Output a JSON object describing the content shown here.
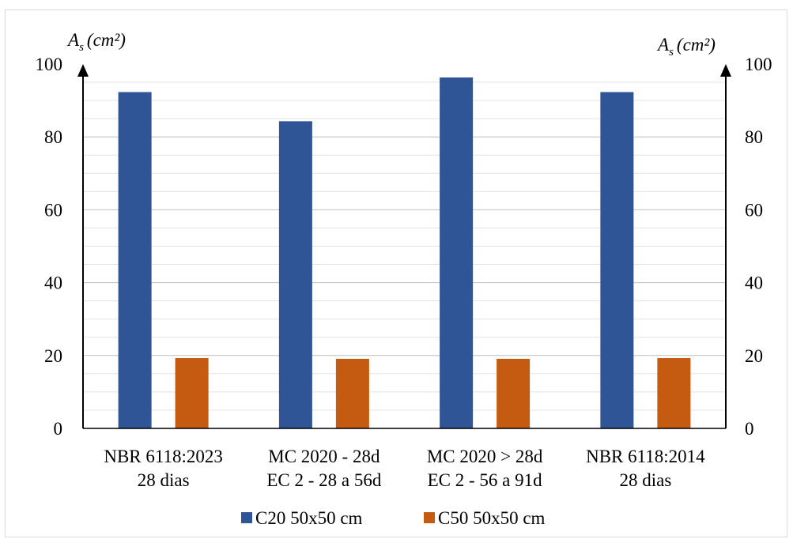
{
  "chart_data": {
    "type": "bar",
    "title": "",
    "categories": [
      [
        "NBR 6118:2023",
        "28 dias"
      ],
      [
        "MC 2020 - 28d",
        "EC 2 - 28 a 56d"
      ],
      [
        "MC 2020 > 28d",
        "EC 2 - 56 a 91d"
      ],
      [
        "NBR 6118:2014",
        "28 dias"
      ]
    ],
    "series": [
      {
        "name": "C20 50x50 cm",
        "color": "#2f5597",
        "values": [
          92.3,
          84.3,
          96.3,
          92.3
        ]
      },
      {
        "name": "C50 50x50 cm",
        "color": "#c55a11",
        "values": [
          19.3,
          19.1,
          19.1,
          19.3
        ]
      }
    ],
    "ylabel_left": {
      "main": "A",
      "sub": "s",
      "unit": "(cm²)"
    },
    "ylabel_right": {
      "main": "A",
      "sub": "s",
      "unit": "(cm²)"
    },
    "ylim": [
      0,
      100
    ],
    "yticks": [
      0,
      20,
      40,
      60,
      80,
      100
    ],
    "grid": true,
    "legend_position": "bottom"
  }
}
